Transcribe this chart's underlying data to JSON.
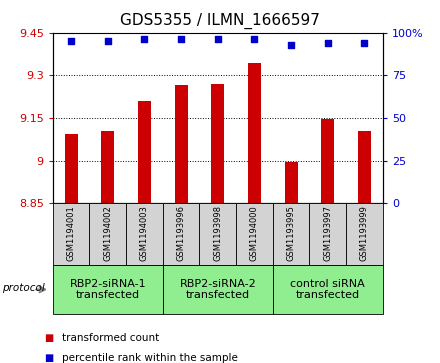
{
  "title": "GDS5355 / ILMN_1666597",
  "samples": [
    "GSM1194001",
    "GSM1194002",
    "GSM1194003",
    "GSM1193996",
    "GSM1193998",
    "GSM1194000",
    "GSM1193995",
    "GSM1193997",
    "GSM1193999"
  ],
  "bar_values": [
    9.095,
    9.105,
    9.21,
    9.265,
    9.27,
    9.345,
    8.995,
    9.145,
    9.105
  ],
  "percentile_values": [
    95,
    95,
    96,
    96,
    96,
    96,
    93,
    94,
    94
  ],
  "ylim_left": [
    8.85,
    9.45
  ],
  "ylim_right": [
    0,
    100
  ],
  "yticks_left": [
    8.85,
    9.0,
    9.15,
    9.3,
    9.45
  ],
  "ytick_labels_left": [
    "8.85",
    "9",
    "9.15",
    "9.3",
    "9.45"
  ],
  "yticks_right": [
    0,
    25,
    50,
    75,
    100
  ],
  "ytick_labels_right": [
    "0",
    "25",
    "50",
    "75",
    "100%"
  ],
  "bar_color": "#cc0000",
  "dot_color": "#0000cc",
  "bar_bottom": 8.85,
  "groups": [
    {
      "label": "RBP2-siRNA-1\ntransfected",
      "start": 0,
      "end": 3,
      "color": "#90ee90"
    },
    {
      "label": "RBP2-siRNA-2\ntransfected",
      "start": 3,
      "end": 6,
      "color": "#90ee90"
    },
    {
      "label": "control siRNA\ntransfected",
      "start": 6,
      "end": 9,
      "color": "#90ee90"
    }
  ],
  "protocol_label": "protocol",
  "legend_items": [
    {
      "color": "#cc0000",
      "label": "transformed count"
    },
    {
      "color": "#0000cc",
      "label": "percentile rank within the sample"
    }
  ],
  "sample_bg_color": "#d3d3d3",
  "title_fontsize": 11,
  "tick_fontsize": 8,
  "sample_fontsize": 6,
  "group_fontsize": 8,
  "legend_fontsize": 7.5
}
